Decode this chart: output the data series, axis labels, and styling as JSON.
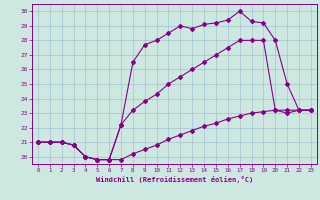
{
  "xlabel": "Windchill (Refroidissement éolien,°C)",
  "bg_color": "#cce8e0",
  "line_color": "#880088",
  "xlim": [
    -0.5,
    23.5
  ],
  "ylim": [
    19.5,
    30.5
  ],
  "yticks": [
    20,
    21,
    22,
    23,
    24,
    25,
    26,
    27,
    28,
    29,
    30
  ],
  "xticks": [
    0,
    1,
    2,
    3,
    4,
    5,
    6,
    7,
    8,
    9,
    10,
    11,
    12,
    13,
    14,
    15,
    16,
    17,
    18,
    19,
    20,
    21,
    22,
    23
  ],
  "series": [
    {
      "x": [
        0,
        1,
        2,
        3,
        4,
        5,
        6,
        7,
        8,
        9,
        10,
        11,
        12,
        13,
        14,
        15,
        16,
        17,
        18,
        19,
        20,
        21,
        22,
        23
      ],
      "y": [
        21,
        21,
        21,
        20.8,
        20.0,
        19.8,
        19.8,
        22.2,
        26.5,
        27.7,
        28.0,
        28.5,
        29.0,
        28.8,
        29.1,
        29.2,
        29.4,
        30.0,
        29.3,
        29.2,
        28.0,
        25.0,
        23.2,
        23.2
      ]
    },
    {
      "x": [
        0,
        1,
        2,
        3,
        4,
        5,
        6,
        7,
        8,
        9,
        10,
        11,
        12,
        13,
        14,
        15,
        16,
        17,
        18,
        19,
        20,
        21,
        22,
        23
      ],
      "y": [
        21,
        21,
        21,
        20.8,
        20.0,
        19.8,
        19.8,
        22.2,
        23.2,
        23.8,
        24.3,
        25.0,
        25.5,
        26.0,
        26.5,
        27.0,
        27.5,
        28.0,
        28.0,
        28.0,
        23.2,
        23.0,
        23.2,
        23.2
      ]
    },
    {
      "x": [
        0,
        1,
        2,
        3,
        4,
        5,
        6,
        7,
        8,
        9,
        10,
        11,
        12,
        13,
        14,
        15,
        16,
        17,
        18,
        19,
        20,
        21,
        22,
        23
      ],
      "y": [
        21,
        21,
        21,
        20.8,
        20.0,
        19.8,
        19.8,
        19.8,
        20.2,
        20.5,
        20.8,
        21.2,
        21.5,
        21.8,
        22.1,
        22.3,
        22.6,
        22.8,
        23.0,
        23.1,
        23.2,
        23.2,
        23.2,
        23.2
      ]
    }
  ]
}
